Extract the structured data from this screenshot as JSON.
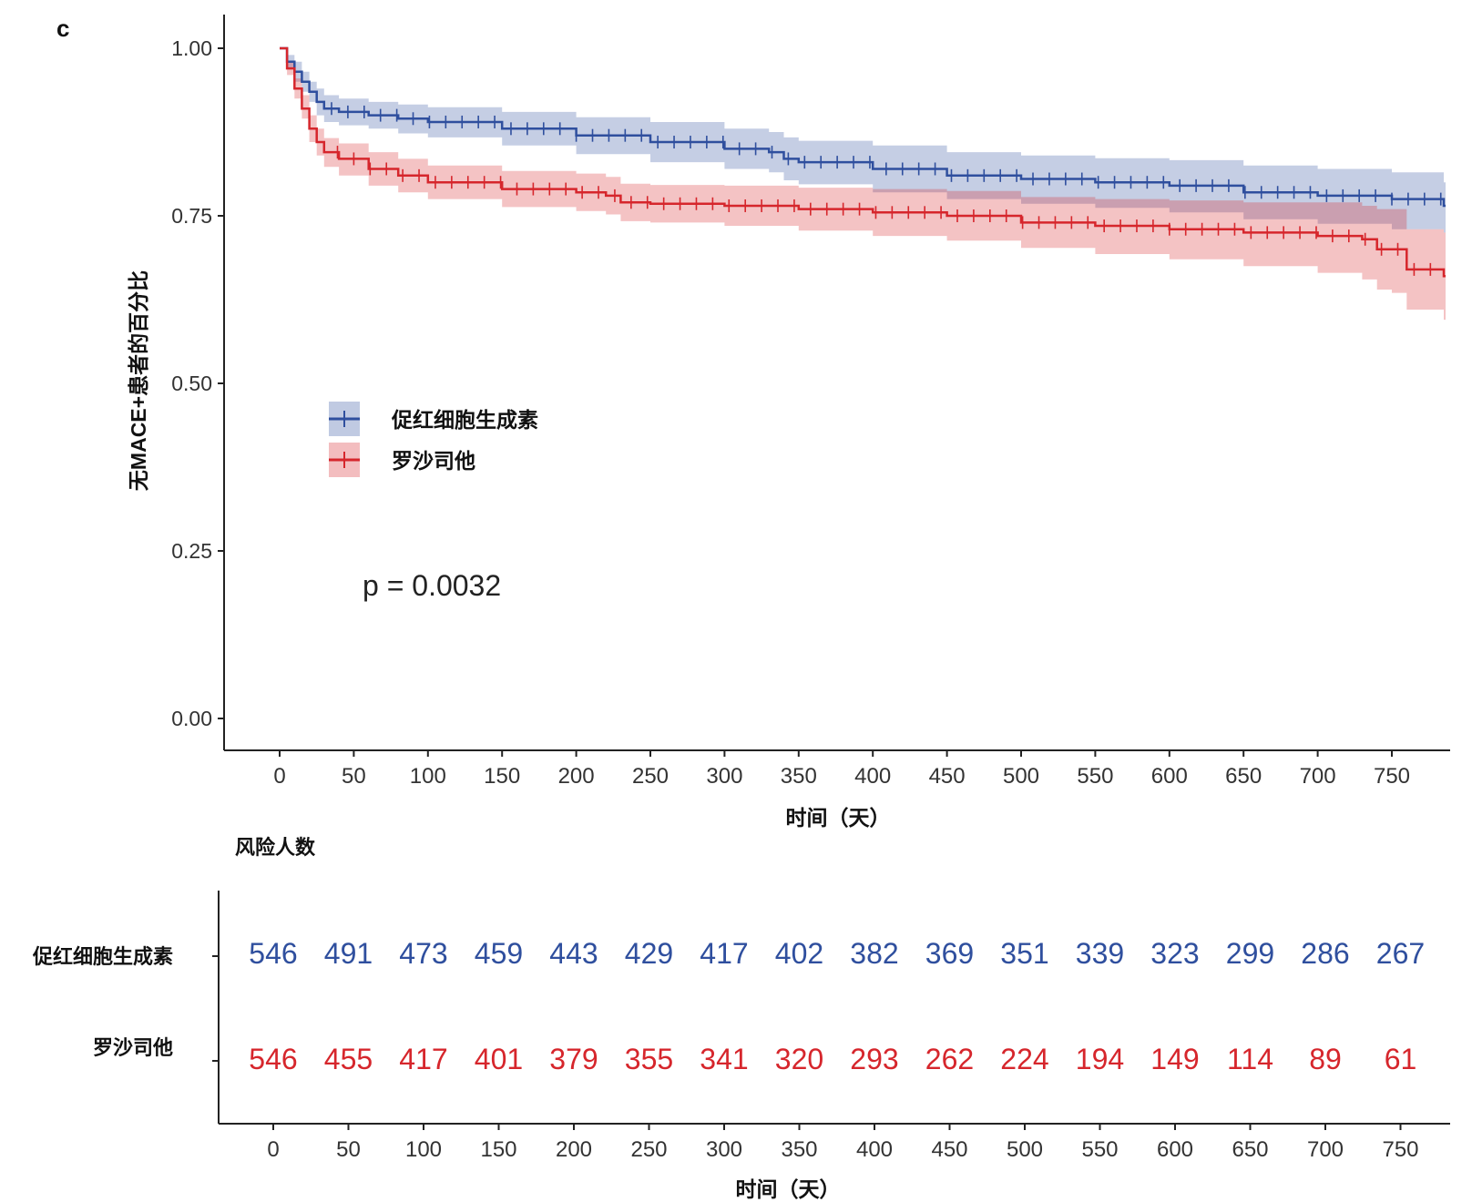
{
  "panel_label": "c",
  "colors": {
    "series_1": "#2f4f9e",
    "series_2": "#d6262c",
    "axis": "#222222"
  },
  "chart_data": {
    "type": "line",
    "subtype": "kaplan-meier survival curve with confidence bands",
    "ylabel": "无MACE+患者的百分比",
    "xlabel": "时间（天）",
    "ylim": [
      0,
      1
    ],
    "xlim": [
      0,
      790
    ],
    "y_ticks": [
      "1.00",
      "0.75",
      "0.50",
      "0.25",
      "0.00"
    ],
    "y_tick_values": [
      1.0,
      0.75,
      0.5,
      0.25,
      0.0
    ],
    "x_ticks": [
      0,
      50,
      100,
      150,
      200,
      250,
      300,
      350,
      400,
      450,
      500,
      550,
      600,
      650,
      700,
      750
    ],
    "legend_position": "center-left",
    "annotation": "p = 0.0032",
    "series": [
      {
        "name": "促红细胞生成素",
        "color": "#2f4f9e",
        "x": [
          0,
          5,
          10,
          15,
          20,
          25,
          30,
          40,
          60,
          80,
          100,
          150,
          200,
          250,
          300,
          330,
          340,
          350,
          400,
          450,
          500,
          550,
          600,
          650,
          700,
          750,
          785
        ],
        "y": [
          1.0,
          0.98,
          0.965,
          0.95,
          0.935,
          0.92,
          0.91,
          0.905,
          0.9,
          0.895,
          0.89,
          0.88,
          0.87,
          0.86,
          0.85,
          0.845,
          0.835,
          0.83,
          0.82,
          0.81,
          0.805,
          0.8,
          0.795,
          0.785,
          0.78,
          0.775,
          0.765
        ],
        "ci_lower": [
          1.0,
          0.97,
          0.95,
          0.935,
          0.92,
          0.9,
          0.89,
          0.885,
          0.88,
          0.873,
          0.867,
          0.855,
          0.842,
          0.83,
          0.82,
          0.815,
          0.803,
          0.797,
          0.785,
          0.775,
          0.768,
          0.762,
          0.755,
          0.745,
          0.738,
          0.73,
          0.725
        ],
        "ci_upper": [
          1.0,
          0.99,
          0.98,
          0.965,
          0.95,
          0.94,
          0.93,
          0.925,
          0.92,
          0.916,
          0.912,
          0.905,
          0.897,
          0.89,
          0.88,
          0.875,
          0.867,
          0.862,
          0.855,
          0.845,
          0.84,
          0.836,
          0.833,
          0.825,
          0.82,
          0.815,
          0.8
        ]
      },
      {
        "name": "罗沙司他",
        "color": "#d6262c",
        "x": [
          0,
          5,
          10,
          15,
          20,
          25,
          30,
          40,
          60,
          80,
          100,
          150,
          200,
          220,
          230,
          250,
          300,
          350,
          400,
          450,
          500,
          550,
          600,
          650,
          700,
          730,
          740,
          750,
          760,
          785
        ],
        "y": [
          1.0,
          0.97,
          0.94,
          0.91,
          0.88,
          0.86,
          0.845,
          0.835,
          0.82,
          0.81,
          0.8,
          0.79,
          0.785,
          0.78,
          0.77,
          0.768,
          0.765,
          0.76,
          0.755,
          0.75,
          0.74,
          0.735,
          0.73,
          0.725,
          0.72,
          0.715,
          0.7,
          0.7,
          0.67,
          0.66
        ],
        "ci_lower": [
          1.0,
          0.96,
          0.925,
          0.895,
          0.86,
          0.84,
          0.823,
          0.81,
          0.795,
          0.785,
          0.775,
          0.763,
          0.757,
          0.752,
          0.742,
          0.74,
          0.735,
          0.728,
          0.72,
          0.713,
          0.702,
          0.693,
          0.685,
          0.675,
          0.665,
          0.655,
          0.64,
          0.635,
          0.61,
          0.595
        ],
        "ci_upper": [
          1.0,
          0.98,
          0.955,
          0.93,
          0.9,
          0.88,
          0.866,
          0.858,
          0.845,
          0.835,
          0.825,
          0.817,
          0.813,
          0.808,
          0.798,
          0.796,
          0.795,
          0.792,
          0.79,
          0.787,
          0.778,
          0.775,
          0.773,
          0.77,
          0.77,
          0.765,
          0.76,
          0.76,
          0.73,
          0.725
        ]
      }
    ],
    "risk_table": {
      "title": "风险人数",
      "xlabel": "时间（天）",
      "x_ticks": [
        0,
        50,
        100,
        150,
        200,
        250,
        300,
        350,
        400,
        450,
        500,
        550,
        600,
        650,
        700,
        750
      ],
      "rows": [
        {
          "group": "促红细胞生成素",
          "color": "#2f4f9e",
          "values": [
            546,
            491,
            473,
            459,
            443,
            429,
            417,
            402,
            382,
            369,
            351,
            339,
            323,
            299,
            286,
            267
          ]
        },
        {
          "group": "罗沙司他",
          "color": "#d6262c",
          "values": [
            546,
            455,
            417,
            401,
            379,
            355,
            341,
            320,
            293,
            262,
            224,
            194,
            149,
            114,
            89,
            61
          ]
        }
      ]
    }
  }
}
